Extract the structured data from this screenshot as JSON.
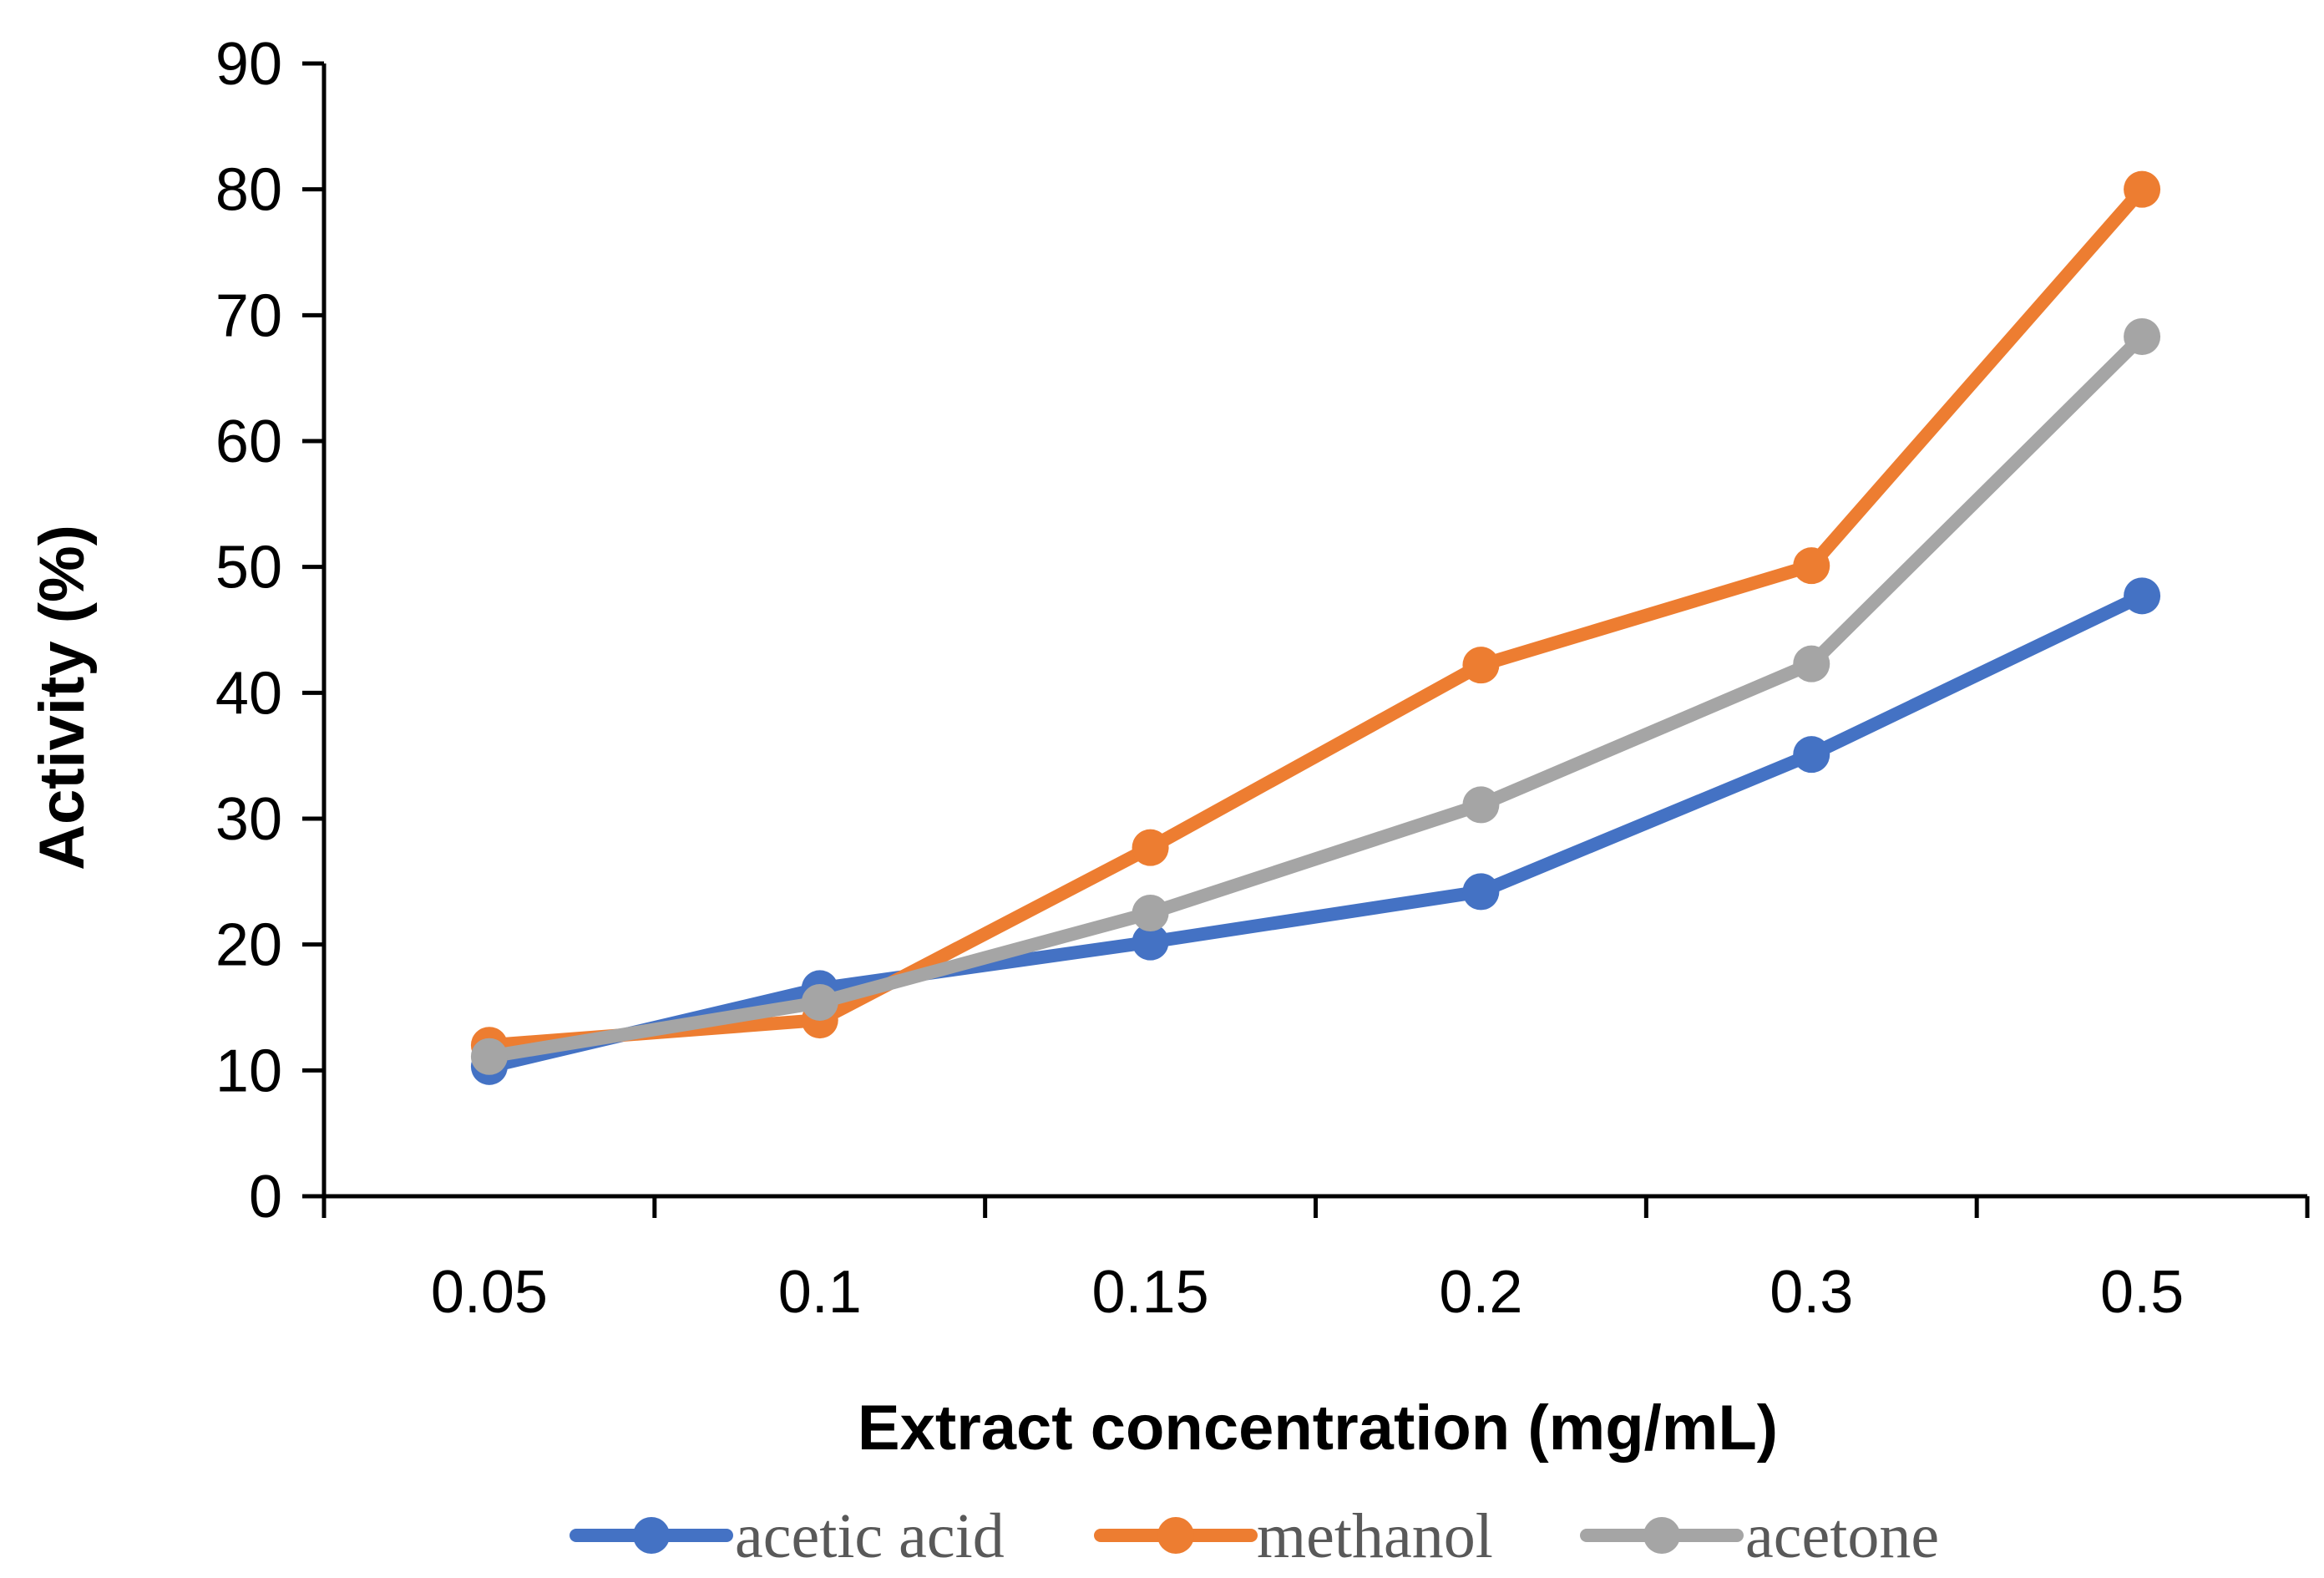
{
  "chart_data": {
    "type": "line",
    "title": "",
    "xlabel": "Extract concentration (mg/mL)",
    "ylabel": "Activity (%)",
    "categories": [
      "0.05",
      "0.1",
      "0.15",
      "0.2",
      "0.3",
      "0.5"
    ],
    "ylim": [
      0,
      90
    ],
    "yticks": [
      "0",
      "10",
      "20",
      "30",
      "40",
      "50",
      "60",
      "70",
      "80",
      "90"
    ],
    "legend_position": "bottom",
    "grid": false,
    "series": [
      {
        "name": "acetic acid",
        "color": "#4472C4",
        "values": [
          10.3,
          16.5,
          20.2,
          24.2,
          35.1,
          47.7
        ]
      },
      {
        "name": "methanol",
        "color": "#ED7D31",
        "values": [
          12.0,
          14.0,
          27.7,
          42.2,
          50.1,
          80.0
        ]
      },
      {
        "name": "acetone",
        "color": "#A5A5A5",
        "values": [
          11.1,
          15.4,
          22.5,
          31.1,
          42.3,
          68.3
        ]
      }
    ]
  }
}
